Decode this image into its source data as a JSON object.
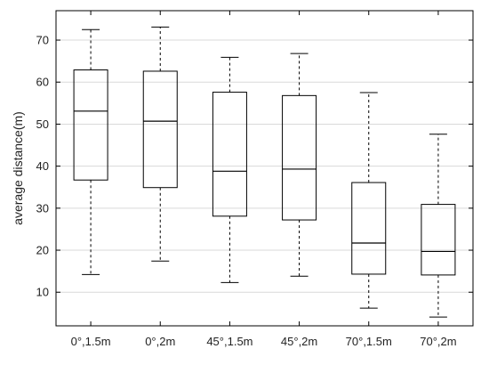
{
  "chart_data": {
    "type": "box",
    "title": "",
    "xlabel": "",
    "ylabel": "average distance(m)",
    "ylim": [
      2,
      77
    ],
    "yticks": [
      10,
      20,
      30,
      40,
      50,
      60,
      70
    ],
    "grid": "y",
    "categories": [
      "0°,1.5m",
      "0°,2m",
      "45°,1.5m",
      "45°,2m",
      "70°,1.5m",
      "70°,2m"
    ],
    "boxes": [
      {
        "min": 14.2,
        "q1": 36.7,
        "median": 53.1,
        "q3": 62.9,
        "max": 72.5
      },
      {
        "min": 17.4,
        "q1": 34.9,
        "median": 50.7,
        "q3": 62.6,
        "max": 73.1
      },
      {
        "min": 12.3,
        "q1": 28.1,
        "median": 38.8,
        "q3": 57.6,
        "max": 65.9
      },
      {
        "min": 13.8,
        "q1": 27.2,
        "median": 39.3,
        "q3": 56.8,
        "max": 66.8
      },
      {
        "min": 6.2,
        "q1": 14.3,
        "median": 21.7,
        "q3": 36.1,
        "max": 57.5
      },
      {
        "min": 4.1,
        "q1": 14.1,
        "median": 19.7,
        "q3": 30.9,
        "max": 47.6
      }
    ],
    "colors": {
      "box": "#000000",
      "grid": "#d9d9d9",
      "axis": "#000000",
      "text": "#222222"
    }
  }
}
